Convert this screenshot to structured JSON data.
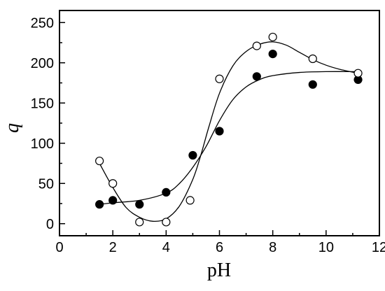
{
  "chart_data": {
    "type": "scatter",
    "title": "",
    "xlabel": "pH",
    "ylabel": "q",
    "xlim": [
      0,
      12
    ],
    "ylim": [
      -15,
      265
    ],
    "xticks": [
      0,
      2,
      4,
      6,
      8,
      10,
      12
    ],
    "yticks": [
      0,
      50,
      100,
      150,
      200,
      250
    ],
    "grid": false,
    "legend": "none",
    "series": [
      {
        "marker": "filled-circle",
        "x": [
          1.5,
          2.0,
          3.0,
          4.0,
          5.0,
          6.0,
          7.4,
          8.0,
          9.5,
          11.2
        ],
        "y": [
          24,
          29,
          24,
          39,
          85,
          115,
          183,
          211,
          173,
          179
        ],
        "fit_curve": {
          "x": [
            1.5,
            2,
            3,
            4,
            4.5,
            5,
            5.5,
            6,
            6.5,
            7,
            7.5,
            8,
            9,
            10,
            11.2
          ],
          "y": [
            24,
            26,
            29,
            38,
            50,
            70,
            96,
            128,
            154,
            170,
            179,
            184,
            188,
            189,
            189
          ]
        }
      },
      {
        "marker": "open-circle",
        "x": [
          1.5,
          2.0,
          3.0,
          4.0,
          4.9,
          6.0,
          7.4,
          8.0,
          9.5,
          11.2
        ],
        "y": [
          78,
          50,
          2,
          2,
          29,
          180,
          221,
          232,
          205,
          187
        ],
        "fit_curve": {
          "x": [
            1.5,
            2,
            2.5,
            3,
            3.5,
            4,
            4.5,
            5,
            5.3,
            5.6,
            6,
            6.5,
            7,
            7.5,
            8,
            8.5,
            9,
            9.5,
            10,
            10.5,
            11.2
          ],
          "y": [
            75,
            45,
            20,
            8,
            3,
            6,
            22,
            55,
            85,
            120,
            162,
            196,
            214,
            223,
            226,
            222,
            213,
            204,
            197,
            192,
            187
          ]
        }
      }
    ]
  }
}
